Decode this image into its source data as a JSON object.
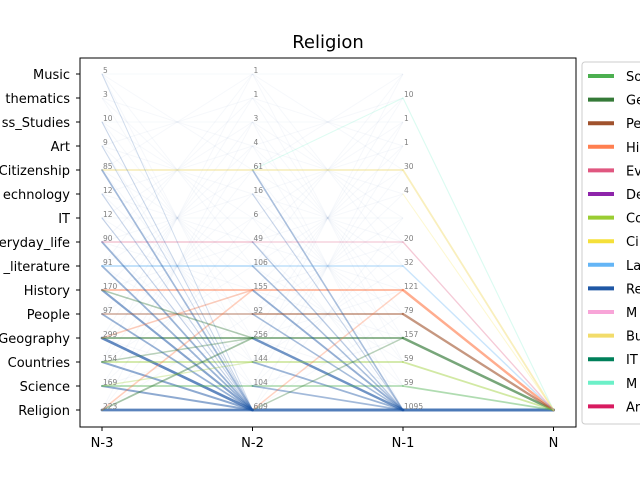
{
  "chart_data": {
    "type": "line",
    "title": "Religion",
    "xlabel": "",
    "ylabel": "",
    "x_ticks": [
      "N-3",
      "N-2",
      "N-1",
      "N"
    ],
    "y_categories": [
      "Religion",
      "Science",
      "Countries",
      "Geography",
      "People",
      "History",
      "_literature",
      "eryday_life",
      "IT",
      "echnology",
      "Citizenship",
      "Art",
      "ss_Studies",
      "thematics",
      "Music"
    ],
    "counts": [
      {
        "step": "N-3",
        "values": [
          "223",
          "169",
          "154",
          "299",
          "97",
          "170",
          "91",
          "90",
          "12",
          "12",
          "85",
          "9",
          "10",
          "3",
          "5"
        ]
      },
      {
        "step": "N-2",
        "values": [
          "609",
          "104",
          "144",
          "256",
          "92",
          "155",
          "106",
          "49",
          "6",
          "16",
          "61",
          "4",
          "3",
          "1",
          "1"
        ]
      },
      {
        "step": "N-1",
        "values": [
          "1095",
          "59",
          "59",
          "157",
          "79",
          "121",
          "32",
          "20",
          "",
          "4",
          "30",
          "1",
          "1",
          "10",
          ""
        ]
      }
    ],
    "legend": {
      "placement": "right",
      "entries": [
        {
          "label": "So",
          "color": "#4caf50"
        },
        {
          "label": "Ge",
          "color": "#357a38"
        },
        {
          "label": "Pe",
          "color": "#a0522d"
        },
        {
          "label": "Hi",
          "color": "#ff7f50"
        },
        {
          "label": "Ev",
          "color": "#e05780"
        },
        {
          "label": "De",
          "color": "#8e24aa"
        },
        {
          "label": "Co",
          "color": "#9acd32"
        },
        {
          "label": "Ci",
          "color": "#f5e03a"
        },
        {
          "label": "La",
          "color": "#64b5f6"
        },
        {
          "label": "Re",
          "color": "#1f57a5"
        },
        {
          "label": "M",
          "color": "#f8a5d8"
        },
        {
          "label": "Bu",
          "color": "#f2dc6b"
        },
        {
          "label": "IT",
          "color": "#00805a"
        },
        {
          "label": "M",
          "color": "#6cf0c8"
        },
        {
          "label": "Ar",
          "color": "#d81b60"
        }
      ]
    },
    "flows": [
      {
        "from_step": "N-1",
        "from": "Religion",
        "to": "Religion",
        "color": "#1f57a5",
        "weight": 1.0
      },
      {
        "from_step": "N-1",
        "from": "Geography",
        "to": "Religion",
        "color": "#357a38",
        "weight": 0.8
      },
      {
        "from_step": "N-1",
        "from": "History",
        "to": "Religion",
        "color": "#ff7f50",
        "weight": 0.75
      },
      {
        "from_step": "N-1",
        "from": "People",
        "to": "Religion",
        "color": "#a0522d",
        "weight": 0.7
      },
      {
        "from_step": "N-1",
        "from": "Countries",
        "to": "Religion",
        "color": "#9acd32",
        "weight": 0.45
      },
      {
        "from_step": "N-1",
        "from": "Science",
        "to": "Religion",
        "color": "#4caf50",
        "weight": 0.45
      },
      {
        "from_step": "N-1",
        "from": "Citizenship",
        "to": "Religion",
        "color": "#f2dc6b",
        "weight": 0.45
      },
      {
        "from_step": "N-1",
        "from": "_literature",
        "to": "Religion",
        "color": "#64b5f6",
        "weight": 0.3
      },
      {
        "from_step": "N-1",
        "from": "eryday_life",
        "to": "Religion",
        "color": "#e05780",
        "weight": 0.25
      },
      {
        "from_step": "N-1",
        "from": "thematics",
        "to": "Religion",
        "color": "#6cf0c8",
        "weight": 0.15
      },
      {
        "from_step": "N-1",
        "from": "echnology",
        "to": "Religion",
        "color": "#f5e03a",
        "weight": 0.12
      },
      {
        "from_step": "N-2",
        "from": "Religion",
        "to": "Religion",
        "color": "#1f57a5",
        "weight": 0.95
      },
      {
        "from_step": "N-2",
        "from": "Geography",
        "to": "Religion",
        "color": "#1f57a5",
        "weight": 0.75
      },
      {
        "from_step": "N-2",
        "from": "Geography",
        "to": "Geography",
        "color": "#357a38",
        "weight": 0.6
      },
      {
        "from_step": "N-2",
        "from": "History",
        "to": "History",
        "color": "#ff7f50",
        "weight": 0.55
      },
      {
        "from_step": "N-2",
        "from": "History",
        "to": "Religion",
        "color": "#1f57a5",
        "weight": 0.5
      },
      {
        "from_step": "N-2",
        "from": "People",
        "to": "People",
        "color": "#a0522d",
        "weight": 0.5
      },
      {
        "from_step": "N-2",
        "from": "Countries",
        "to": "Countries",
        "color": "#9acd32",
        "weight": 0.45
      },
      {
        "from_step": "N-2",
        "from": "Countries",
        "to": "Religion",
        "color": "#1f57a5",
        "weight": 0.45
      },
      {
        "from_step": "N-2",
        "from": "Science",
        "to": "Science",
        "color": "#4caf50",
        "weight": 0.4
      },
      {
        "from_step": "N-2",
        "from": "Science",
        "to": "Religion",
        "color": "#1f57a5",
        "weight": 0.4
      },
      {
        "from_step": "N-2",
        "from": "Citizenship",
        "to": "Citizenship",
        "color": "#f2dc6b",
        "weight": 0.4
      },
      {
        "from_step": "N-2",
        "from": "Citizenship",
        "to": "Religion",
        "color": "#1f57a5",
        "weight": 0.35
      },
      {
        "from_step": "N-2",
        "from": "_literature",
        "to": "_literature",
        "color": "#64b5f6",
        "weight": 0.35
      },
      {
        "from_step": "N-2",
        "from": "_literature",
        "to": "Religion",
        "color": "#1f57a5",
        "weight": 0.35
      },
      {
        "from_step": "N-2",
        "from": "eryday_life",
        "to": "eryday_life",
        "color": "#e05780",
        "weight": 0.25
      },
      {
        "from_step": "N-2",
        "from": "eryday_life",
        "to": "Religion",
        "color": "#1f57a5",
        "weight": 0.25
      },
      {
        "from_step": "N-2",
        "from": "People",
        "to": "Religion",
        "color": "#1f57a5",
        "weight": 0.35
      },
      {
        "from_step": "N-2",
        "from": "Religion",
        "to": "Geography",
        "color": "#357a38",
        "weight": 0.3
      },
      {
        "from_step": "N-2",
        "from": "Religion",
        "to": "History",
        "color": "#ff7f50",
        "weight": 0.3
      },
      {
        "from_step": "N-2",
        "from": "Citizenship",
        "to": "thematics",
        "color": "#6cf0c8",
        "weight": 0.12
      },
      {
        "from_step": "N-2",
        "from": "echnology",
        "to": "Religion",
        "color": "#1f57a5",
        "weight": 0.15
      },
      {
        "from_step": "N-3",
        "from": "Religion",
        "to": "Religion",
        "color": "#1f57a5",
        "weight": 0.9
      },
      {
        "from_step": "N-3",
        "from": "Geography",
        "to": "Religion",
        "color": "#1f57a5",
        "weight": 0.85
      },
      {
        "from_step": "N-3",
        "from": "Geography",
        "to": "Geography",
        "color": "#357a38",
        "weight": 0.6
      },
      {
        "from_step": "N-3",
        "from": "History",
        "to": "Religion",
        "color": "#1f57a5",
        "weight": 0.6
      },
      {
        "from_step": "N-3",
        "from": "History",
        "to": "History",
        "color": "#ff7f50",
        "weight": 0.5
      },
      {
        "from_step": "N-3",
        "from": "Countries",
        "to": "Religion",
        "color": "#1f57a5",
        "weight": 0.55
      },
      {
        "from_step": "N-3",
        "from": "Countries",
        "to": "Countries",
        "color": "#9acd32",
        "weight": 0.45
      },
      {
        "from_step": "N-3",
        "from": "Science",
        "to": "Religion",
        "color": "#1f57a5",
        "weight": 0.55
      },
      {
        "from_step": "N-3",
        "from": "Science",
        "to": "Science",
        "color": "#4caf50",
        "weight": 0.45
      },
      {
        "from_step": "N-3",
        "from": "People",
        "to": "Religion",
        "color": "#1f57a5",
        "weight": 0.45
      },
      {
        "from_step": "N-3",
        "from": "People",
        "to": "People",
        "color": "#a0522d",
        "weight": 0.4
      },
      {
        "from_step": "N-3",
        "from": "_literature",
        "to": "Religion",
        "color": "#1f57a5",
        "weight": 0.45
      },
      {
        "from_step": "N-3",
        "from": "_literature",
        "to": "_literature",
        "color": "#64b5f6",
        "weight": 0.4
      },
      {
        "from_step": "N-3",
        "from": "eryday_life",
        "to": "Religion",
        "color": "#1f57a5",
        "weight": 0.45
      },
      {
        "from_step": "N-3",
        "from": "eryday_life",
        "to": "eryday_life",
        "color": "#e05780",
        "weight": 0.3
      },
      {
        "from_step": "N-3",
        "from": "Citizenship",
        "to": "Citizenship",
        "color": "#f2dc6b",
        "weight": 0.4
      },
      {
        "from_step": "N-3",
        "from": "Citizenship",
        "to": "Religion",
        "color": "#1f57a5",
        "weight": 0.4
      },
      {
        "from_step": "N-3",
        "from": "Religion",
        "to": "Geography",
        "color": "#357a38",
        "weight": 0.45
      },
      {
        "from_step": "N-3",
        "from": "Religion",
        "to": "History",
        "color": "#ff7f50",
        "weight": 0.35
      },
      {
        "from_step": "N-3",
        "from": "Geography",
        "to": "History",
        "color": "#ff7f50",
        "weight": 0.35
      },
      {
        "from_step": "N-3",
        "from": "History",
        "to": "Geography",
        "color": "#357a38",
        "weight": 0.35
      },
      {
        "from_step": "N-3",
        "from": "Countries",
        "to": "Geography",
        "color": "#357a38",
        "weight": 0.3
      },
      {
        "from_step": "N-3",
        "from": "Science",
        "to": "Countries",
        "color": "#9acd32",
        "weight": 0.25
      },
      {
        "from_step": "N-3",
        "from": "IT",
        "to": "Religion",
        "color": "#1f57a5",
        "weight": 0.15
      },
      {
        "from_step": "N-3",
        "from": "echnology",
        "to": "Religion",
        "color": "#1f57a5",
        "weight": 0.15
      },
      {
        "from_step": "N-3",
        "from": "ss_Studies",
        "to": "Religion",
        "color": "#1f57a5",
        "weight": 0.1
      },
      {
        "from_step": "N-3",
        "from": "Art",
        "to": "Religion",
        "color": "#1f57a5",
        "weight": 0.1
      },
      {
        "from_step": "N-3",
        "from": "Music",
        "to": "Religion",
        "color": "#1f57a5",
        "weight": 0.08
      }
    ]
  }
}
